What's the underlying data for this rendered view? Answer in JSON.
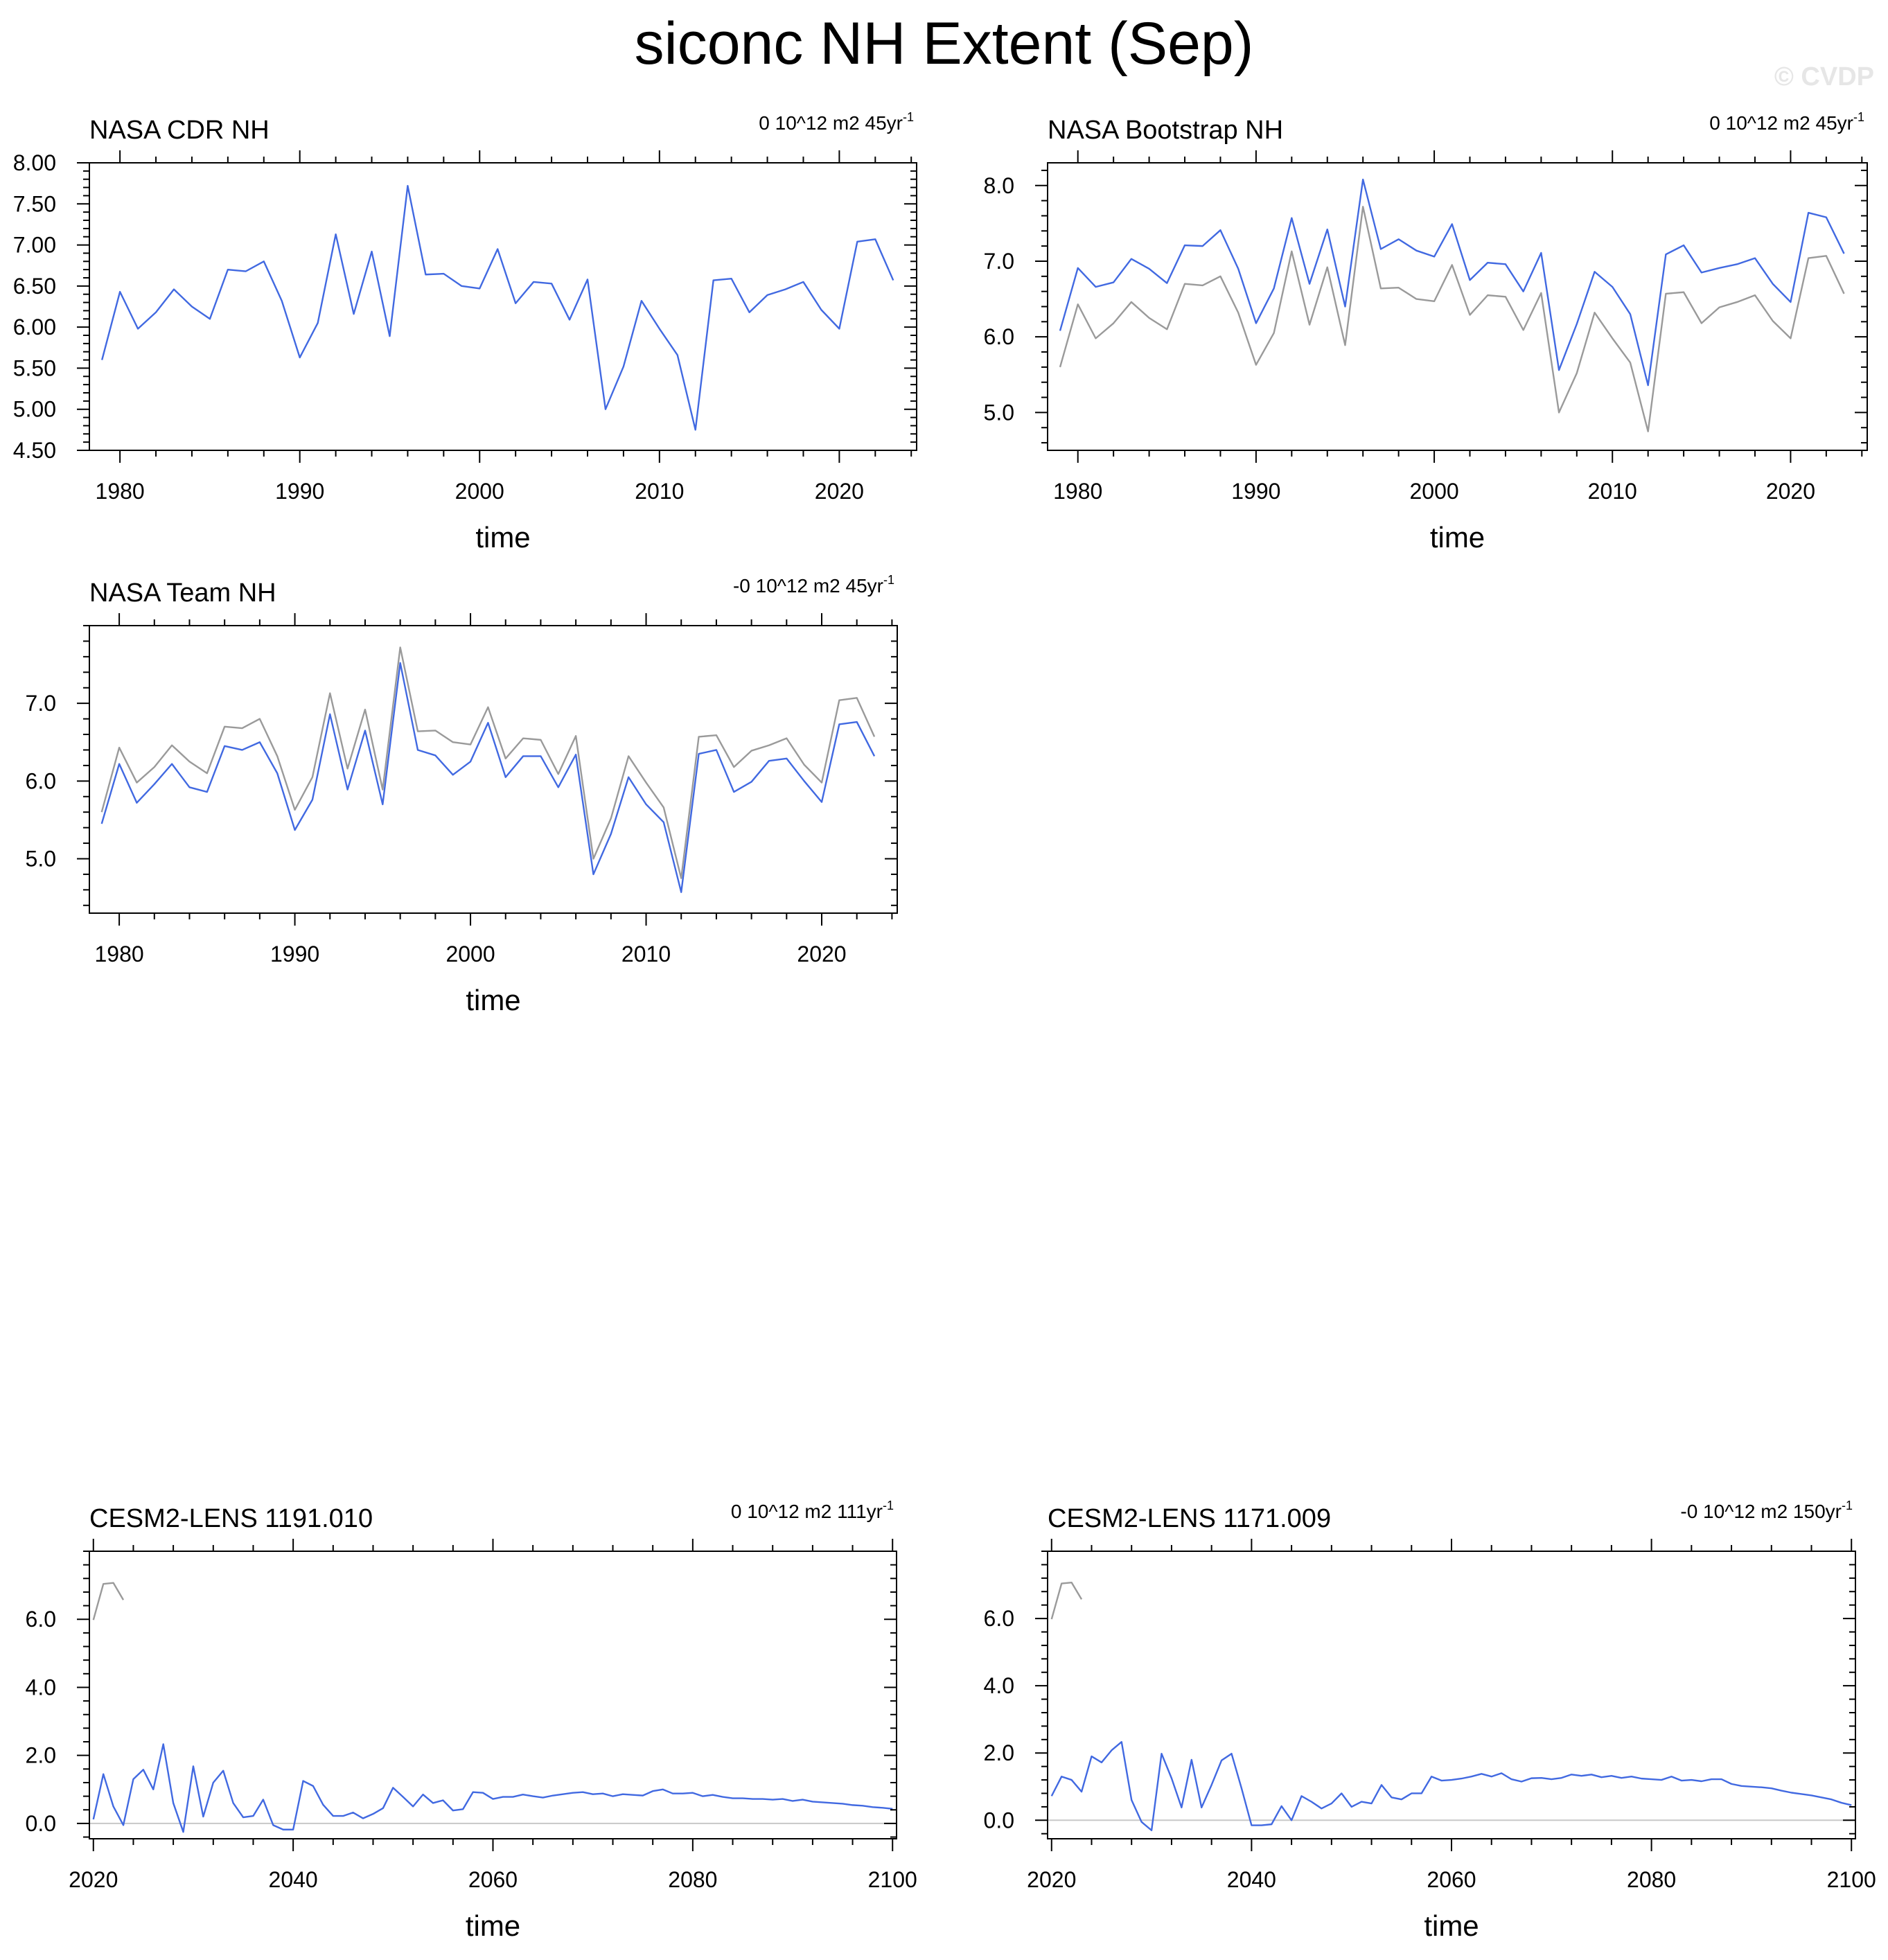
{
  "title": "siconc NH Extent (Sep)",
  "watermark": "© CVDP",
  "colors": {
    "model": "#4169e1",
    "observed": "#9a9a9a",
    "zero_line": "#c8c8c8",
    "axis": "#000000"
  },
  "chart_data": [
    {
      "type": "line",
      "title": "NASA CDR NH",
      "trend_label": "0 10^12 m2 45yr",
      "trend_exp": "-1",
      "xlabel": "time",
      "ylabel": "",
      "xlim": [
        1978.3,
        2024.3
      ],
      "ylim": [
        4.5,
        8.0
      ],
      "xticks": [
        1980,
        1990,
        2000,
        2010,
        2020
      ],
      "yticks": [
        4.5,
        5.0,
        5.5,
        6.0,
        6.5,
        7.0,
        7.5,
        8.0
      ],
      "ytick_labels": [
        "4.50",
        "5.00",
        "5.50",
        "6.00",
        "6.50",
        "7.00",
        "7.50",
        "8.00"
      ],
      "grid": false,
      "zero_line": false,
      "series": [
        {
          "role": "model",
          "x0": 1979,
          "values": [
            5.6,
            6.43,
            5.98,
            6.18,
            6.46,
            6.25,
            6.1,
            6.7,
            6.68,
            6.8,
            6.32,
            5.63,
            6.05,
            7.13,
            6.16,
            6.92,
            5.89,
            7.72,
            6.64,
            6.65,
            6.5,
            6.47,
            6.95,
            6.29,
            6.55,
            6.53,
            6.09,
            6.58,
            5.0,
            5.52,
            6.32,
            5.98,
            5.66,
            4.75,
            6.57,
            6.59,
            6.18,
            6.39,
            6.46,
            6.55,
            6.21,
            5.98,
            7.04,
            7.07,
            6.57
          ]
        }
      ]
    },
    {
      "type": "line",
      "title": "NASA Bootstrap NH",
      "trend_label": "0 10^12 m2 45yr",
      "trend_exp": "-1",
      "xlabel": "time",
      "ylabel": "",
      "xlim": [
        1978.3,
        2024.3
      ],
      "ylim": [
        4.5,
        8.3
      ],
      "xticks": [
        1980,
        1990,
        2000,
        2010,
        2020
      ],
      "yticks": [
        5.0,
        6.0,
        7.0,
        8.0
      ],
      "ytick_labels": [
        "5.0",
        "6.0",
        "7.0",
        "8.0"
      ],
      "grid": false,
      "zero_line": false,
      "series": [
        {
          "role": "observed",
          "x0": 1979,
          "values": [
            5.6,
            6.43,
            5.98,
            6.18,
            6.46,
            6.25,
            6.1,
            6.7,
            6.68,
            6.8,
            6.32,
            5.63,
            6.05,
            7.13,
            6.16,
            6.92,
            5.89,
            7.72,
            6.64,
            6.65,
            6.5,
            6.47,
            6.95,
            6.29,
            6.55,
            6.53,
            6.09,
            6.58,
            5.0,
            5.52,
            6.32,
            5.98,
            5.66,
            4.75,
            6.57,
            6.59,
            6.18,
            6.39,
            6.46,
            6.55,
            6.21,
            5.98,
            7.04,
            7.07,
            6.57
          ]
        },
        {
          "role": "model",
          "x0": 1979,
          "values": [
            6.08,
            6.91,
            6.66,
            6.72,
            7.03,
            6.9,
            6.71,
            7.21,
            7.2,
            7.41,
            6.9,
            6.18,
            6.64,
            7.57,
            6.7,
            7.42,
            6.4,
            8.08,
            7.16,
            7.29,
            7.14,
            7.06,
            7.49,
            6.75,
            6.98,
            6.96,
            6.6,
            7.11,
            5.56,
            6.17,
            6.86,
            6.66,
            6.3,
            5.36,
            7.09,
            7.21,
            6.85,
            6.91,
            6.96,
            7.04,
            6.7,
            6.46,
            7.64,
            7.58,
            7.1
          ]
        }
      ]
    },
    {
      "type": "line",
      "title": "NASA Team NH",
      "trend_label": "-0 10^12 m2 45yr",
      "trend_exp": "-1",
      "xlabel": "time",
      "ylabel": "",
      "xlim": [
        1978.3,
        2024.3
      ],
      "ylim": [
        4.3,
        8.0
      ],
      "xticks": [
        1980,
        1990,
        2000,
        2010,
        2020
      ],
      "yticks": [
        5.0,
        6.0,
        7.0
      ],
      "ytick_labels": [
        "5.0",
        "6.0",
        "7.0"
      ],
      "grid": false,
      "zero_line": false,
      "series": [
        {
          "role": "observed",
          "x0": 1979,
          "values": [
            5.6,
            6.43,
            5.98,
            6.18,
            6.46,
            6.25,
            6.1,
            6.7,
            6.68,
            6.8,
            6.32,
            5.63,
            6.05,
            7.13,
            6.16,
            6.92,
            5.89,
            7.72,
            6.64,
            6.65,
            6.5,
            6.47,
            6.95,
            6.29,
            6.55,
            6.53,
            6.09,
            6.58,
            5.0,
            5.52,
            6.32,
            5.98,
            5.66,
            4.75,
            6.57,
            6.59,
            6.18,
            6.39,
            6.46,
            6.55,
            6.21,
            5.98,
            7.04,
            7.07,
            6.57
          ]
        },
        {
          "role": "model",
          "x0": 1979,
          "values": [
            5.45,
            6.22,
            5.72,
            5.96,
            6.22,
            5.92,
            5.86,
            6.45,
            6.4,
            6.5,
            6.1,
            5.37,
            5.76,
            6.86,
            5.89,
            6.65,
            5.7,
            7.52,
            6.4,
            6.33,
            6.08,
            6.25,
            6.75,
            6.05,
            6.32,
            6.32,
            5.92,
            6.34,
            4.8,
            5.32,
            6.05,
            5.7,
            5.47,
            4.57,
            6.35,
            6.4,
            5.86,
            5.99,
            6.26,
            6.29,
            6.0,
            5.73,
            6.73,
            6.76,
            6.32
          ]
        }
      ]
    },
    {
      "type": "line",
      "title": "CESM2-LENS 1191.010",
      "trend_label": "0 10^12 m2 111yr",
      "trend_exp": "-1",
      "xlabel": "time",
      "ylabel": "",
      "xlim": [
        2019.6,
        2100.4
      ],
      "ylim": [
        -0.45,
        8.0
      ],
      "xticks": [
        2020,
        2040,
        2060,
        2080,
        2100
      ],
      "yticks": [
        0.0,
        2.0,
        4.0,
        6.0
      ],
      "ytick_labels": [
        "0.0",
        "2.0",
        "4.0",
        "6.0"
      ],
      "grid": false,
      "zero_line": true,
      "series": [
        {
          "role": "observed",
          "x0": 2020,
          "values": [
            5.98,
            7.04,
            7.07,
            6.57
          ]
        },
        {
          "role": "model",
          "x0": 2020,
          "values": [
            0.12,
            1.45,
            0.5,
            -0.05,
            1.3,
            1.58,
            1.0,
            2.33,
            0.6,
            -0.25,
            1.68,
            0.2,
            1.2,
            1.55,
            0.6,
            0.18,
            0.22,
            0.7,
            -0.05,
            -0.18,
            -0.18,
            1.25,
            1.1,
            0.55,
            0.22,
            0.22,
            0.32,
            0.15,
            0.28,
            0.45,
            1.05,
            0.78,
            0.5,
            0.85,
            0.6,
            0.68,
            0.38,
            0.42,
            0.92,
            0.9,
            0.72,
            0.78,
            0.78,
            0.85,
            0.8,
            0.76,
            0.82,
            0.86,
            0.9,
            0.92,
            0.86,
            0.88,
            0.8,
            0.86,
            0.84,
            0.82,
            0.95,
            1.0,
            0.88,
            0.88,
            0.9,
            0.8,
            0.84,
            0.78,
            0.74,
            0.74,
            0.72,
            0.72,
            0.7,
            0.72,
            0.66,
            0.7,
            0.64,
            0.62,
            0.6,
            0.58,
            0.54,
            0.52,
            0.48,
            0.46,
            0.43
          ]
        }
      ]
    },
    {
      "type": "line",
      "title": "CESM2-LENS 1171.009",
      "trend_label": "-0 10^12 m2 150yr",
      "trend_exp": "-1",
      "xlabel": "time",
      "ylabel": "",
      "xlim": [
        2019.6,
        2100.4
      ],
      "ylim": [
        -0.55,
        8.0
      ],
      "xticks": [
        2020,
        2040,
        2060,
        2080,
        2100
      ],
      "yticks": [
        0.0,
        2.0,
        4.0,
        6.0
      ],
      "ytick_labels": [
        "0.0",
        "2.0",
        "4.0",
        "6.0"
      ],
      "grid": false,
      "zero_line": true,
      "series": [
        {
          "role": "observed",
          "x0": 2020,
          "values": [
            5.98,
            7.04,
            7.07,
            6.57
          ]
        },
        {
          "role": "model",
          "x0": 2020,
          "values": [
            0.72,
            1.3,
            1.2,
            0.85,
            1.9,
            1.72,
            2.08,
            2.33,
            0.6,
            -0.05,
            -0.3,
            1.98,
            1.25,
            0.38,
            1.8,
            0.38,
            1.05,
            1.78,
            1.98,
            0.95,
            -0.15,
            -0.15,
            -0.12,
            0.42,
            0.0,
            0.72,
            0.55,
            0.35,
            0.5,
            0.8,
            0.4,
            0.55,
            0.5,
            1.05,
            0.68,
            0.62,
            0.8,
            0.8,
            1.3,
            1.18,
            1.2,
            1.24,
            1.3,
            1.38,
            1.3,
            1.4,
            1.22,
            1.15,
            1.25,
            1.26,
            1.22,
            1.26,
            1.36,
            1.32,
            1.36,
            1.28,
            1.32,
            1.26,
            1.3,
            1.24,
            1.22,
            1.2,
            1.3,
            1.18,
            1.2,
            1.16,
            1.22,
            1.22,
            1.08,
            1.02,
            1.0,
            0.98,
            0.95,
            0.88,
            0.82,
            0.78,
            0.74,
            0.68,
            0.62,
            0.52,
            0.45
          ]
        }
      ]
    }
  ]
}
